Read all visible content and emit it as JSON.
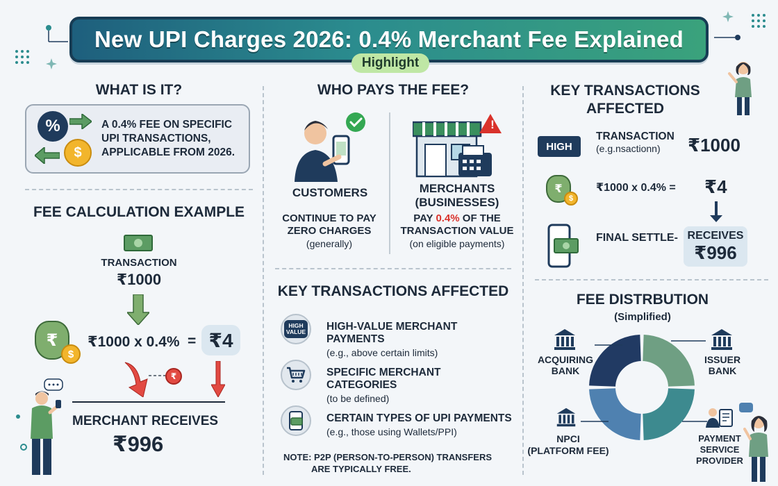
{
  "header": {
    "title": "New UPI Charges 2026: 0.4% Merchant Fee Explained",
    "badge": "Highlight"
  },
  "what_is_it": {
    "heading": "WHAT IS IT?",
    "icon_text": "%",
    "coin_symbol": "$",
    "lines": [
      "A 0.4% FEE ON SPECIFIC",
      "UPI TRANSACTIONS,",
      "APPLICABLE FROM 2026."
    ]
  },
  "fee_calc": {
    "heading": "FEE CALCULATION EXAMPLE",
    "transaction_label": "TRANSACTION",
    "transaction_amount": "₹1000",
    "bag_symbol": "₹",
    "coin_symbol": "$",
    "formula": "₹1000 x 0.4%",
    "equals": "=",
    "fee": "₹4",
    "small_coin": "₹",
    "receives_label": "MERCHANT RECEIVES",
    "receives_amount": "₹996"
  },
  "who_pays": {
    "heading": "WHO PAYS THE FEE?",
    "customers": {
      "title": "CUSTOMERS",
      "lines": [
        "CONTINUE TO PAY",
        "ZERO CHARGES"
      ],
      "note": "(generally)"
    },
    "merchants": {
      "title": "MERCHANTS",
      "subtitle": "(BUSINESSES)",
      "line1_pre": "PAY ",
      "line1_highlight": "0.4%",
      "line1_post": " OF THE",
      "line2": "TRANSACTION VALUE",
      "note": "(on eligible payments)"
    },
    "alert_glyph": "!"
  },
  "key_tx_center": {
    "heading": "KEY TRANSACTIONS AFFECTED",
    "items": [
      {
        "title": "HIGH-VALUE MERCHANT PAYMENTS",
        "sub": "(e.g., above certain limits)",
        "icon": "high-value-icon",
        "icon_text": "HIGH VALUE"
      },
      {
        "title": "SPECIFIC MERCHANT CATEGORIES",
        "sub": "(to be defined)",
        "icon": "shopping-cart-icon"
      },
      {
        "title": "CERTAIN TYPES OF UPI PAYMENTS",
        "sub": "(e.g., those using Wallets/PPI)",
        "icon": "wallet-phone-icon"
      }
    ],
    "note_line1": "NOTE: P2P (PERSON-TO-PERSON) TRANSFERS",
    "note_line2": "ARE TYPICALLY FREE."
  },
  "key_tx_right": {
    "heading_line1": "KEY TRANSACTIONS",
    "heading_line2": "AFFECTED",
    "high_tag": "HIGH",
    "transaction_label": "TRANSACTION",
    "transaction_sub": "(e.g.nsactionn)",
    "transaction_amount": "₹1000",
    "formula": "₹1000 x 0.4% =",
    "fee": "₹4",
    "bag_symbol": "₹",
    "coin_symbol": "$",
    "final_label": "FINAL SETTLE-",
    "receives_label": "RECEIVES",
    "receives_amount": "₹996"
  },
  "fee_distribution": {
    "heading": "FEE DISTRBUTION",
    "sub": "(Simplified)",
    "labels": {
      "acquiring": [
        "ACQUIRING",
        "BANK"
      ],
      "issuer": [
        "ISSUER",
        "BANK"
      ],
      "npci": [
        "NPCI",
        "(PLATFORM FEE)"
      ],
      "psp": [
        "PAYMENT",
        "SERVICE",
        "PROVIDER"
      ]
    },
    "colors": {
      "acquiring": "#213a63",
      "issuer": "#6f9f83",
      "npci": "#4f81b0",
      "psp": "#3d8a8f"
    }
  },
  "colors": {
    "accent_green": "#3aa27c",
    "accent_teal": "#2b8c8e",
    "navy": "#1f3b5c",
    "highlight_red": "#d9322b",
    "badge_green": "#bfe7a5"
  }
}
